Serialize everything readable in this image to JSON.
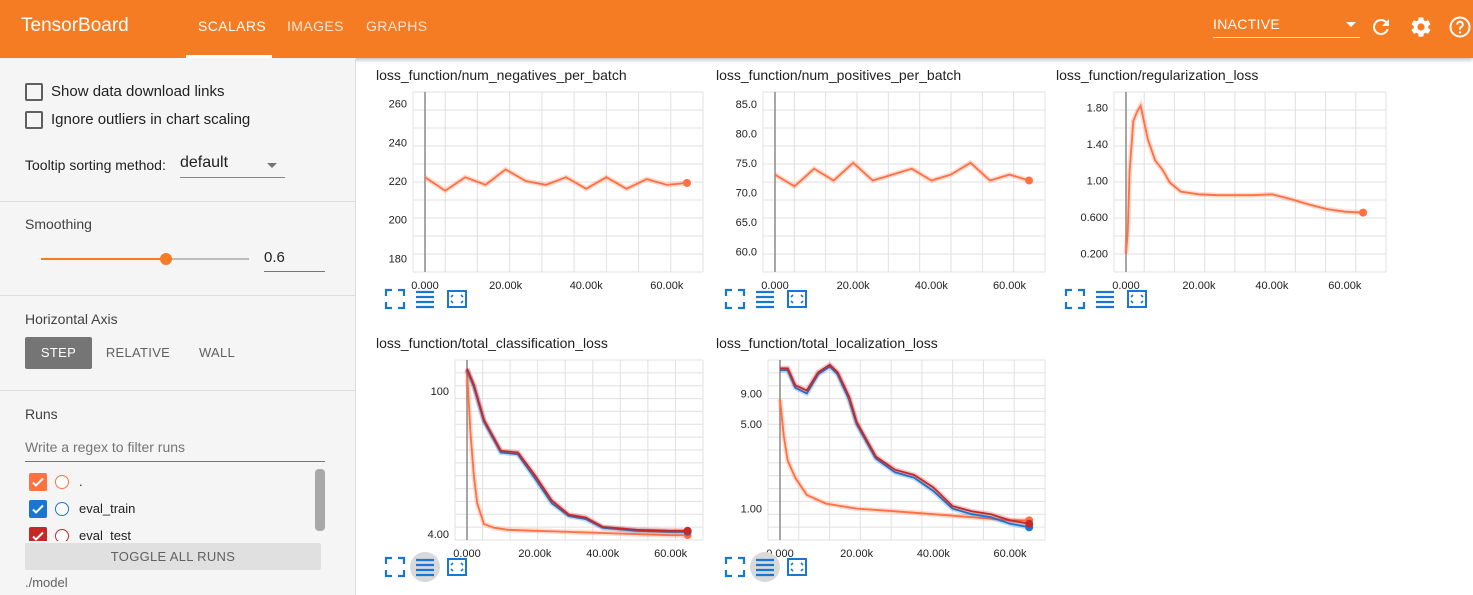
{
  "app": {
    "title": "TensorBoard"
  },
  "tabs": [
    {
      "label": "SCALARS"
    },
    {
      "label": "IMAGES"
    },
    {
      "label": "GRAPHS"
    }
  ],
  "header": {
    "status": "INACTIVE",
    "icons": [
      "refresh-icon",
      "settings-icon",
      "help-icon"
    ],
    "accent_color": "#f57c22"
  },
  "sidebar": {
    "show_download_links": "Show data download links",
    "ignore_outliers": "Ignore outliers in chart scaling",
    "tooltip_sorting_label": "Tooltip sorting method:",
    "tooltip_sorting_value": "default",
    "smoothing_label": "Smoothing",
    "smoothing_value": "0.6",
    "smoothing_fraction": 0.6,
    "horizontal_axis_label": "Horizontal Axis",
    "axis_options": [
      {
        "label": "STEP",
        "active": true
      },
      {
        "label": "RELATIVE",
        "active": false
      },
      {
        "label": "WALL",
        "active": false
      }
    ],
    "runs_label": "Runs",
    "runs_filter_placeholder": "Write a regex to filter runs",
    "runs": [
      {
        "name": ".",
        "checked": true,
        "color": "#ff7043"
      },
      {
        "name": "eval_train",
        "checked": true,
        "color": "#1976d2"
      },
      {
        "name": "eval_test",
        "checked": true,
        "color": "#c62828"
      }
    ],
    "toggle_all_label": "TOGGLE ALL RUNS",
    "model_path": "./model"
  },
  "chart_data": [
    {
      "type": "line",
      "title": "loss_function/num_negatives_per_batch",
      "x_ticks": [
        "0.000",
        "20.00k",
        "40.00k",
        "60.00k"
      ],
      "y_ticks": [
        "180",
        "200",
        "220",
        "240",
        "260"
      ],
      "xlim": [
        0,
        66000
      ],
      "ylim": [
        173,
        266
      ],
      "series": [
        {
          "color": "#ff7043",
          "x": [
            0,
            5000,
            10000,
            15000,
            20000,
            25000,
            30000,
            35000,
            40000,
            45000,
            50000,
            55000,
            60000,
            65000
          ],
          "y": [
            222,
            215,
            222,
            218,
            226,
            220,
            218,
            222,
            216,
            222,
            216,
            221,
            218,
            219
          ]
        }
      ]
    },
    {
      "type": "line",
      "title": "loss_function/num_positives_per_batch",
      "x_ticks": [
        "0.000",
        "20.00k",
        "40.00k",
        "60.00k"
      ],
      "y_ticks": [
        "60.0",
        "65.0",
        "70.0",
        "75.0",
        "80.0",
        "85.0"
      ],
      "xlim": [
        0,
        66000
      ],
      "ylim": [
        56.5,
        87
      ],
      "series": [
        {
          "color": "#ff7043",
          "x": [
            0,
            5000,
            10000,
            15000,
            20000,
            25000,
            30000,
            35000,
            40000,
            45000,
            50000,
            55000,
            60000,
            65000
          ],
          "y": [
            73,
            71,
            74,
            72,
            75,
            72,
            73,
            74,
            72,
            73,
            75,
            72,
            73,
            72
          ]
        }
      ]
    },
    {
      "type": "line",
      "title": "loss_function/regularization_loss",
      "x_ticks": [
        "0.000",
        "20.00k",
        "40.00k",
        "60.00k"
      ],
      "y_ticks": [
        "0.200",
        "0.600",
        "1.00",
        "1.40",
        "1.80"
      ],
      "xlim": [
        0,
        68000
      ],
      "ylim": [
        0,
        1.97
      ],
      "series": [
        {
          "color": "#ff7043",
          "x": [
            0,
            500,
            1000,
            2000,
            3000,
            4000,
            6000,
            8000,
            10000,
            12000,
            15000,
            20000,
            25000,
            30000,
            35000,
            40000,
            45000,
            50000,
            55000,
            60000,
            65000
          ],
          "y": [
            0.2,
            0.45,
            1.1,
            1.65,
            1.75,
            1.82,
            1.45,
            1.22,
            1.12,
            0.98,
            0.88,
            0.85,
            0.84,
            0.84,
            0.84,
            0.85,
            0.8,
            0.74,
            0.69,
            0.66,
            0.65
          ]
        }
      ]
    },
    {
      "type": "line",
      "title": "loss_function/total_classification_loss",
      "x_ticks": [
        "0.000",
        "20.00k",
        "40.00k",
        "60.00k"
      ],
      "y_ticks": [
        "4.00",
        "100"
      ],
      "y_scale": "log",
      "xlim": [
        0,
        66000
      ],
      "ylim": [
        3.5,
        200
      ],
      "series": [
        {
          "name": ".",
          "color": "#ff7043",
          "x": [
            0,
            1000,
            2000,
            3000,
            5000,
            8000,
            12000,
            20000,
            30000,
            40000,
            50000,
            60000,
            65000
          ],
          "y": [
            160,
            40,
            15,
            8,
            5,
            4.6,
            4.4,
            4.3,
            4.2,
            4.1,
            4.0,
            3.9,
            3.9
          ]
        },
        {
          "name": "eval_train",
          "color": "#1976d2",
          "x": [
            0,
            2000,
            5000,
            10000,
            15000,
            20000,
            25000,
            30000,
            35000,
            40000,
            50000,
            60000,
            65000
          ],
          "y": [
            160,
            110,
            50,
            25,
            24,
            14,
            8,
            6,
            5.6,
            4.6,
            4.3,
            4.2,
            4.2
          ]
        },
        {
          "name": "eval_test",
          "color": "#c62828",
          "x": [
            0,
            2000,
            5000,
            10000,
            15000,
            20000,
            25000,
            30000,
            35000,
            40000,
            50000,
            60000,
            65000
          ],
          "y": [
            165,
            115,
            52,
            26,
            25,
            15,
            8.5,
            6.2,
            5.8,
            4.7,
            4.4,
            4.3,
            4.3
          ]
        }
      ]
    },
    {
      "type": "line",
      "title": "loss_function/total_localization_loss",
      "x_ticks": [
        "0.000",
        "20.00k",
        "40.00k",
        "60.00k"
      ],
      "y_ticks": [
        "1.00",
        "5.00",
        "9.00"
      ],
      "y_scale": "log",
      "xlim": [
        0,
        66000
      ],
      "ylim": [
        0.55,
        17
      ],
      "series": [
        {
          "name": ".",
          "color": "#ff7043",
          "x": [
            0,
            1000,
            2000,
            4000,
            7000,
            12000,
            20000,
            30000,
            40000,
            50000,
            60000,
            65000
          ],
          "y": [
            8,
            4,
            2.5,
            1.8,
            1.3,
            1.1,
            1.0,
            0.95,
            0.9,
            0.85,
            0.8,
            0.8
          ]
        },
        {
          "name": "eval_train",
          "color": "#1976d2",
          "x": [
            0,
            2000,
            4000,
            7000,
            10000,
            13000,
            15000,
            18000,
            20000,
            25000,
            30000,
            35000,
            40000,
            45000,
            50000,
            55000,
            60000,
            65000
          ],
          "y": [
            14,
            14,
            10,
            9,
            13,
            15,
            13,
            8,
            5,
            2.6,
            2,
            1.8,
            1.4,
            1.0,
            0.9,
            0.85,
            0.75,
            0.7
          ]
        },
        {
          "name": "eval_test",
          "color": "#c62828",
          "x": [
            0,
            2000,
            4000,
            7000,
            10000,
            13000,
            15000,
            18000,
            20000,
            25000,
            30000,
            35000,
            40000,
            45000,
            50000,
            55000,
            60000,
            65000
          ],
          "y": [
            14.5,
            14.5,
            10.5,
            9.5,
            13.5,
            15.5,
            13.5,
            8.5,
            5.2,
            2.7,
            2.1,
            1.9,
            1.5,
            1.05,
            0.95,
            0.9,
            0.8,
            0.75
          ]
        }
      ]
    }
  ]
}
